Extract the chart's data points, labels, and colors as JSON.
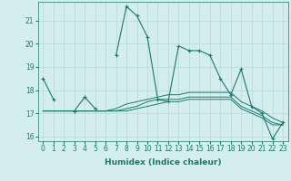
{
  "xlabel": "Humidex (Indice chaleur)",
  "x": [
    0,
    1,
    2,
    3,
    4,
    5,
    6,
    7,
    8,
    9,
    10,
    11,
    12,
    13,
    14,
    15,
    16,
    17,
    18,
    19,
    20,
    21,
    22,
    23
  ],
  "line1": [
    18.5,
    17.6,
    null,
    17.1,
    17.7,
    17.2,
    null,
    19.5,
    21.6,
    21.2,
    20.3,
    17.6,
    17.5,
    19.9,
    19.7,
    19.7,
    19.5,
    18.5,
    17.8,
    18.9,
    17.3,
    17.0,
    15.9,
    16.6
  ],
  "flat1": [
    17.1,
    17.1,
    17.1,
    17.1,
    17.1,
    17.1,
    17.1,
    17.2,
    17.4,
    17.5,
    17.6,
    17.7,
    17.8,
    17.8,
    17.9,
    17.9,
    17.9,
    17.9,
    17.9,
    17.5,
    17.3,
    17.1,
    16.8,
    16.6
  ],
  "flat2": [
    17.1,
    17.1,
    17.1,
    17.1,
    17.1,
    17.1,
    17.1,
    17.1,
    17.2,
    17.3,
    17.5,
    17.6,
    17.6,
    17.6,
    17.7,
    17.7,
    17.7,
    17.7,
    17.7,
    17.3,
    17.1,
    16.9,
    16.6,
    16.5
  ],
  "flat3": [
    17.1,
    17.1,
    17.1,
    17.1,
    17.1,
    17.1,
    17.1,
    17.1,
    17.1,
    17.2,
    17.3,
    17.4,
    17.5,
    17.5,
    17.6,
    17.6,
    17.6,
    17.6,
    17.6,
    17.2,
    17.0,
    16.8,
    16.5,
    16.5
  ],
  "ylim": [
    15.8,
    21.8
  ],
  "yticks": [
    16,
    17,
    18,
    19,
    20,
    21
  ],
  "line_color": "#1a7a6e",
  "bg_color": "#d4edee",
  "grid_color": "#b8d8d8",
  "label_fontsize": 6.5,
  "tick_fontsize": 5.5
}
